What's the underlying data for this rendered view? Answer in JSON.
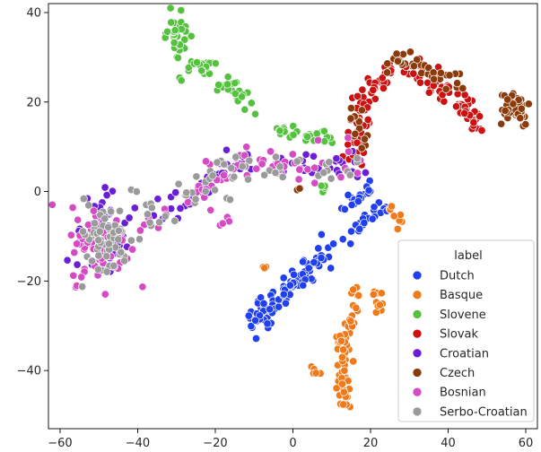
{
  "chart_data": {
    "type": "scatter",
    "title": "",
    "xlabel": "",
    "ylabel": "",
    "xlim": [
      -63,
      63
    ],
    "ylim": [
      -53,
      42
    ],
    "x_ticks": [
      -60,
      -40,
      -20,
      0,
      20,
      40,
      60
    ],
    "y_ticks": [
      -40,
      -20,
      0,
      20,
      40
    ],
    "grid": false,
    "legend": {
      "title": "label",
      "position": "bottom-right"
    },
    "series": [
      {
        "name": "Dutch",
        "color": "#1f3ff0",
        "clusters": [
          {
            "path": [
              [
                -9,
                -28
              ],
              [
                -4,
                -24
              ],
              [
                2,
                -19
              ],
              [
                6,
                -16
              ],
              [
                10,
                -12
              ]
            ],
            "spread": 1.3,
            "n": 90
          },
          {
            "center": [
              -8.5,
              -27
            ],
            "sx": 1.6,
            "sy": 1.8,
            "n": 25
          },
          {
            "path": [
              [
                13,
                -12
              ],
              [
                17,
                -8
              ],
              [
                20,
                -6
              ],
              [
                24,
                -2
              ]
            ],
            "spread": 1.0,
            "n": 25
          },
          {
            "path": [
              [
                14,
                -3
              ],
              [
                17,
                -1
              ],
              [
                19,
                1
              ]
            ],
            "spread": 1.0,
            "n": 18
          }
        ]
      },
      {
        "name": "Basque",
        "color": "#f07a1a",
        "clusters": [
          {
            "path": [
              [
                13,
                -30
              ],
              [
                13,
                -38
              ],
              [
                13,
                -45
              ],
              [
                14,
                -48
              ]
            ],
            "spread": 0.9,
            "n": 55
          },
          {
            "path": [
              [
                16,
                -21
              ],
              [
                16,
                -26
              ],
              [
                15,
                -30
              ]
            ],
            "spread": 0.6,
            "n": 15
          },
          {
            "path": [
              [
                21,
                -21
              ],
              [
                22,
                -25
              ],
              [
                21,
                -27
              ]
            ],
            "spread": 0.8,
            "n": 10
          },
          {
            "center": [
              7,
              -40
            ],
            "sx": 1.2,
            "sy": 0.8,
            "n": 6
          },
          {
            "path": [
              [
                24,
                -3
              ],
              [
                26,
                -5
              ],
              [
                28,
                -7
              ]
            ],
            "spread": 0.7,
            "n": 8
          },
          {
            "center": [
              -8,
              -17
            ],
            "sx": 0.8,
            "sy": 0.6,
            "n": 3
          }
        ]
      },
      {
        "name": "Slovene",
        "color": "#55c23e",
        "clusters": [
          {
            "center": [
              -29.5,
              35
            ],
            "sx": 1.6,
            "sy": 2.2,
            "n": 35
          },
          {
            "path": [
              [
                -26,
                29
              ],
              [
                -21,
                28
              ]
            ],
            "spread": 1.0,
            "n": 18
          },
          {
            "path": [
              [
                -19,
                24
              ],
              [
                -14,
                22
              ],
              [
                -11,
                19
              ]
            ],
            "spread": 1.0,
            "n": 22
          },
          {
            "path": [
              [
                -4,
                14
              ],
              [
                1,
                13
              ],
              [
                7,
                12
              ],
              [
                10,
                12
              ]
            ],
            "spread": 0.9,
            "n": 30
          },
          {
            "center": [
              8,
              1
            ],
            "sx": 0.7,
            "sy": 0.5,
            "n": 4
          },
          {
            "center": [
              -29,
              25
            ],
            "sx": 0.5,
            "sy": 0.5,
            "n": 2
          }
        ]
      },
      {
        "name": "Slovak",
        "color": "#cc1111",
        "clusters": [
          {
            "path": [
              [
                16,
                8
              ],
              [
                17,
                16
              ],
              [
                19,
                22
              ],
              [
                24,
                26
              ],
              [
                30,
                28
              ],
              [
                36,
                25
              ],
              [
                41,
                22
              ],
              [
                45,
                18
              ],
              [
                48,
                14
              ]
            ],
            "spread": 1.4,
            "n": 130
          }
        ]
      },
      {
        "name": "Croatian",
        "color": "#6a1fd6",
        "clusters": [
          {
            "center": [
              -48.5,
              -10.5
            ],
            "sx": 3.2,
            "sy": 4.2,
            "n": 70
          },
          {
            "path": [
              [
                -35,
                -5
              ],
              [
                -25,
                -1
              ],
              [
                -18,
                5
              ],
              [
                -12,
                7
              ],
              [
                -5,
                6
              ],
              [
                2,
                6
              ],
              [
                8,
                6
              ],
              [
                14,
                5
              ],
              [
                17,
                4
              ]
            ],
            "spread": 2.0,
            "n": 70
          }
        ]
      },
      {
        "name": "Czech",
        "color": "#8b3a0b",
        "clusters": [
          {
            "path": [
              [
                16,
                18
              ],
              [
                17,
                13
              ],
              [
                19,
                9
              ]
            ],
            "spread": 0.8,
            "n": 12
          },
          {
            "path": [
              [
                26,
                29
              ],
              [
                32,
                29
              ],
              [
                38,
                26
              ],
              [
                45,
                23
              ]
            ],
            "spread": 1.2,
            "n": 35
          },
          {
            "center": [
              56.5,
              19
            ],
            "sx": 2.5,
            "sy": 2.3,
            "n": 45
          },
          {
            "center": [
              2,
              0
            ],
            "sx": 0.5,
            "sy": 0.4,
            "n": 2
          }
        ]
      },
      {
        "name": "Bosnian",
        "color": "#d54bc4",
        "clusters": [
          {
            "center": [
              -49.5,
              -12
            ],
            "sx": 3.8,
            "sy": 4.3,
            "n": 70
          },
          {
            "path": [
              [
                -38,
                -7
              ],
              [
                -28,
                -3
              ],
              [
                -20,
                3
              ],
              [
                -12,
                7
              ],
              [
                -5,
                6
              ],
              [
                2,
                6
              ],
              [
                9,
                6
              ],
              [
                16,
                6
              ]
            ],
            "spread": 2.2,
            "n": 60
          },
          {
            "center": [
              -18,
              -6.5
            ],
            "sx": 1.0,
            "sy": 0.5,
            "n": 4
          }
        ]
      },
      {
        "name": "Serbo-Croatian",
        "color": "#9a9a9a",
        "clusters": [
          {
            "center": [
              -49,
              -11
            ],
            "sx": 3.5,
            "sy": 4.3,
            "n": 60
          },
          {
            "path": [
              [
                -38,
                -6
              ],
              [
                -28,
                -1
              ],
              [
                -20,
                3
              ],
              [
                -12,
                5
              ],
              [
                -4,
                5
              ],
              [
                4,
                5
              ],
              [
                12,
                5
              ],
              [
                17,
                5
              ]
            ],
            "spread": 2.0,
            "n": 55
          },
          {
            "center": [
              -41,
              0
            ],
            "sx": 0.5,
            "sy": 0.4,
            "n": 2
          }
        ]
      }
    ]
  }
}
